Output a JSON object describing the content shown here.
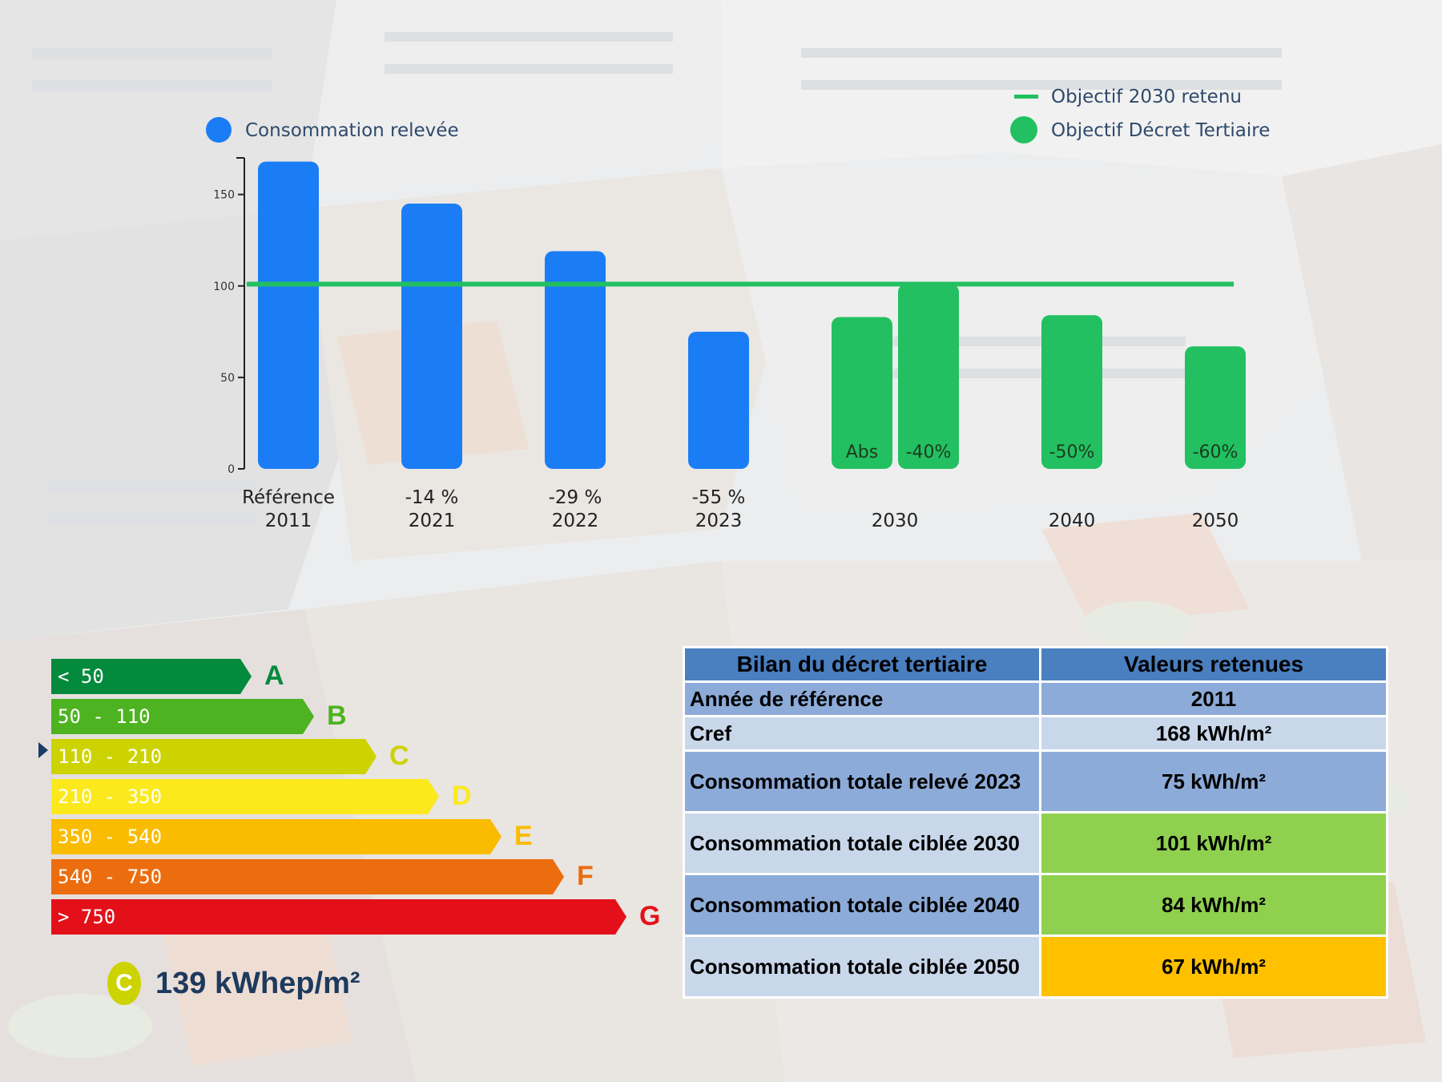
{
  "chart_data": {
    "type": "bar",
    "ylim": [
      0,
      170
    ],
    "yticks": [
      0,
      50,
      100,
      150
    ],
    "target_line": {
      "name": "Objectif 2030 retenu",
      "value": 101,
      "color": "#22c061"
    },
    "legend": [
      {
        "name": "Consommation relevée",
        "color": "#1a7df5",
        "marker": "circle"
      },
      {
        "name": "Objectif 2030 retenu",
        "color": "#22c061",
        "marker": "line"
      },
      {
        "name": "Objectif Décret Tertiaire",
        "color": "#22c061",
        "marker": "circle"
      }
    ],
    "bars": [
      {
        "group": "2011",
        "sub": "Référence",
        "series": "Consommation relevée",
        "value": 168,
        "color": "#1a7df5",
        "label": ""
      },
      {
        "group": "2021",
        "sub": "-14 %",
        "series": "Consommation relevée",
        "value": 145,
        "color": "#1a7df5",
        "label": ""
      },
      {
        "group": "2022",
        "sub": "-29 %",
        "series": "Consommation relevée",
        "value": 119,
        "color": "#1a7df5",
        "label": ""
      },
      {
        "group": "2023",
        "sub": "-55 %",
        "series": "Consommation relevée",
        "value": 75,
        "color": "#1a7df5",
        "label": ""
      },
      {
        "group": "2030",
        "sub": "",
        "series": "Objectif Décret Tertiaire",
        "value": 83,
        "color": "#22c061",
        "label": "Abs"
      },
      {
        "group": "2030",
        "sub": "",
        "series": "Objectif Décret Tertiaire",
        "value": 101,
        "color": "#22c061",
        "label": "-40%"
      },
      {
        "group": "2040",
        "sub": "",
        "series": "Objectif Décret Tertiaire",
        "value": 84,
        "color": "#22c061",
        "label": "-50%"
      },
      {
        "group": "2050",
        "sub": "",
        "series": "Objectif Décret Tertiaire",
        "value": 67,
        "color": "#22c061",
        "label": "-60%"
      }
    ],
    "categories": [
      {
        "top": "Référence",
        "bottom": "2011"
      },
      {
        "top": "-14 %",
        "bottom": "2021"
      },
      {
        "top": "-29 %",
        "bottom": "2022"
      },
      {
        "top": "-55 %",
        "bottom": "2023"
      },
      {
        "top": "",
        "bottom": "2030"
      },
      {
        "top": "",
        "bottom": "2040"
      },
      {
        "top": "",
        "bottom": "2050"
      }
    ]
  },
  "energy_label": {
    "bands": [
      {
        "range": "< 50",
        "letter": "A",
        "color": "#048a3c"
      },
      {
        "range": "50 - 110",
        "letter": "B",
        "color": "#4db320"
      },
      {
        "range": "110 - 210",
        "letter": "C",
        "color": "#cdd300"
      },
      {
        "range": "210 - 350",
        "letter": "D",
        "color": "#fbe91d"
      },
      {
        "range": "350 - 540",
        "letter": "E",
        "color": "#f9bc00"
      },
      {
        "range": "540 - 750",
        "letter": "F",
        "color": "#ec6d0e"
      },
      {
        "range": "> 750",
        "letter": "G",
        "color": "#e3101a"
      }
    ],
    "current_class": "C",
    "current_value": "139 kWhep/m²"
  },
  "summary_table": {
    "headers": [
      "Bilan du décret tertiaire",
      "Valeurs retenues"
    ],
    "rows": [
      {
        "label": "Année de référence",
        "value": "2011",
        "style": "dark"
      },
      {
        "label": "Cref",
        "value": "168 kWh/m²",
        "style": "light"
      },
      {
        "label": "Consommation totale relevé 2023",
        "value": "75 kWh/m²",
        "style": "dark"
      },
      {
        "label": "Consommation totale ciblée 2030",
        "value": "101 kWh/m²",
        "style": "light",
        "value_color": "green"
      },
      {
        "label": "Consommation totale ciblée 2040",
        "value": "84 kWh/m²",
        "style": "dark",
        "value_color": "green"
      },
      {
        "label": "Consommation totale ciblée 2050",
        "value": "67 kWh/m²",
        "style": "light",
        "value_color": "orange"
      }
    ]
  }
}
